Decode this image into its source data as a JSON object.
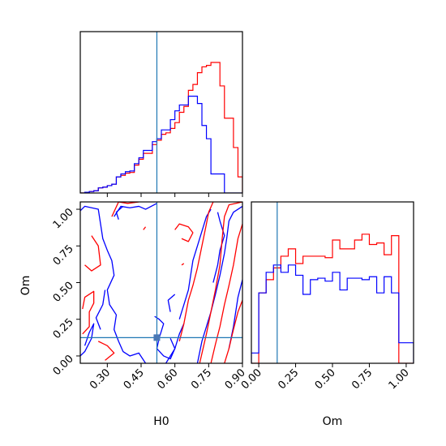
{
  "chart_data": {
    "type": "corner",
    "parameters": [
      "H0",
      "Om"
    ],
    "truth": {
      "H0": 0.52,
      "Om": 0.125
    },
    "colors": {
      "red": "#ff0000",
      "blue": "#0000ff",
      "truth": "#1f77b4",
      "marker": "#4a78b5"
    },
    "panels": [
      {
        "id": "hist-H0",
        "type": "histogram",
        "xlim": [
          0.18,
          0.9
        ],
        "ylim": [
          0,
          1.1
        ],
        "xticks": [
          "0.30",
          "0.45",
          "0.60",
          "0.75",
          "0.90"
        ],
        "xtick_values": [
          0.3,
          0.45,
          0.6,
          0.75,
          0.9
        ],
        "bin_edges": [
          0.18,
          0.2,
          0.22,
          0.24,
          0.26,
          0.28,
          0.3,
          0.32,
          0.34,
          0.36,
          0.38,
          0.4,
          0.42,
          0.44,
          0.46,
          0.48,
          0.5,
          0.52,
          0.54,
          0.56,
          0.58,
          0.6,
          0.62,
          0.64,
          0.66,
          0.68,
          0.7,
          0.72,
          0.74,
          0.76,
          0.78,
          0.8,
          0.82,
          0.84,
          0.86,
          0.88,
          0.9
        ],
        "series": [
          {
            "color": "red",
            "values": [
              0,
              0.005,
              0.01,
              0.015,
              0.035,
              0.04,
              0.05,
              0.06,
              0.11,
              0.12,
              0.135,
              0.14,
              0.19,
              0.23,
              0.27,
              0.27,
              0.33,
              0.36,
              0.4,
              0.41,
              0.44,
              0.48,
              0.55,
              0.59,
              0.7,
              0.74,
              0.82,
              0.86,
              0.87,
              0.89,
              0.89,
              0.73,
              0.51,
              0.51,
              0.31,
              0.11
            ]
          },
          {
            "color": "blue",
            "values": [
              0,
              0.005,
              0.01,
              0.015,
              0.035,
              0.04,
              0.05,
              0.06,
              0.11,
              0.13,
              0.145,
              0.15,
              0.2,
              0.24,
              0.29,
              0.29,
              0.35,
              0.37,
              0.43,
              0.43,
              0.5,
              0.56,
              0.6,
              0.6,
              0.66,
              0.66,
              0.61,
              0.46,
              0.37,
              0.13,
              0.13,
              0.13,
              0.0,
              0.0,
              0.0,
              0.0
            ]
          }
        ]
      },
      {
        "id": "contour-H0-Om",
        "type": "contour",
        "xlim": [
          0.18,
          0.9
        ],
        "ylim": [
          -0.05,
          1.05
        ],
        "xticks": [
          "0.30",
          "0.45",
          "0.60",
          "0.75",
          "0.90"
        ],
        "xtick_values": [
          0.3,
          0.45,
          0.6,
          0.75,
          0.9
        ],
        "yticks": [
          "0.00",
          "0.25",
          "0.50",
          "0.75",
          "1.00"
        ],
        "ytick_values": [
          0.0,
          0.25,
          0.5,
          0.75,
          1.0
        ],
        "xlabel": "H0",
        "ylabel": "Om",
        "contours": [
          {
            "color": "blue",
            "points": [
              [
                0.18,
                0.99
              ],
              [
                0.2,
                1.02
              ],
              [
                0.26,
                1.0
              ],
              [
                0.27,
                0.9
              ],
              [
                0.28,
                0.8
              ],
              [
                0.3,
                0.72
              ],
              [
                0.32,
                0.65
              ],
              [
                0.33,
                0.55
              ],
              [
                0.3,
                0.45
              ],
              [
                0.31,
                0.35
              ],
              [
                0.34,
                0.28
              ],
              [
                0.33,
                0.18
              ],
              [
                0.35,
                0.1
              ],
              [
                0.37,
                0.03
              ],
              [
                0.4,
                0.0
              ],
              [
                0.44,
                0.02
              ],
              [
                0.47,
                -0.05
              ]
            ]
          },
          {
            "color": "blue",
            "points": [
              [
                0.27,
                0.18
              ],
              [
                0.25,
                0.26
              ],
              [
                0.28,
                0.35
              ],
              [
                0.29,
                0.45
              ]
            ]
          },
          {
            "color": "blue",
            "points": [
              [
                0.2,
                0.07
              ],
              [
                0.22,
                0.16
              ],
              [
                0.24,
                0.22
              ],
              [
                0.23,
                0.12
              ],
              [
                0.2,
                0.03
              ],
              [
                0.18,
                0.0
              ]
            ]
          },
          {
            "color": "blue",
            "points": [
              [
                0.33,
                0.95
              ],
              [
                0.36,
                1.02
              ],
              [
                0.4,
                1.01
              ],
              [
                0.44,
                1.02
              ],
              [
                0.47,
                1.0
              ],
              [
                0.52,
                1.04
              ]
            ]
          },
          {
            "color": "blue",
            "points": [
              [
                0.37,
                1.02
              ],
              [
                0.34,
                0.98
              ],
              [
                0.35,
                0.93
              ]
            ]
          },
          {
            "color": "blue",
            "points": [
              [
                0.51,
                0.27
              ],
              [
                0.53,
                0.25
              ],
              [
                0.55,
                0.22
              ],
              [
                0.53,
                0.12
              ],
              [
                0.52,
                0.05
              ],
              [
                0.55,
                0.0
              ],
              [
                0.58,
                -0.02
              ],
              [
                0.6,
                0.05
              ],
              [
                0.58,
                0.12
              ]
            ]
          },
          {
            "color": "blue",
            "points": [
              [
                0.58,
                0.3
              ],
              [
                0.57,
                0.38
              ],
              [
                0.6,
                0.42
              ]
            ]
          },
          {
            "color": "blue",
            "points": [
              [
                0.62,
                0.25
              ],
              [
                0.64,
                0.35
              ],
              [
                0.66,
                0.45
              ],
              [
                0.67,
                0.55
              ],
              [
                0.68,
                0.65
              ],
              [
                0.7,
                0.75
              ],
              [
                0.72,
                0.85
              ],
              [
                0.74,
                0.95
              ],
              [
                0.76,
                1.0
              ]
            ]
          },
          {
            "color": "blue",
            "points": [
              [
                0.56,
                -0.05
              ],
              [
                0.6,
                0.05
              ],
              [
                0.62,
                0.15
              ],
              [
                0.64,
                0.22
              ]
            ]
          },
          {
            "color": "blue",
            "points": [
              [
                0.7,
                -0.05
              ],
              [
                0.72,
                0.1
              ],
              [
                0.74,
                0.2
              ],
              [
                0.76,
                0.3
              ],
              [
                0.78,
                0.42
              ],
              [
                0.8,
                0.55
              ],
              [
                0.82,
                0.7
              ],
              [
                0.83,
                0.8
              ],
              [
                0.84,
                0.92
              ],
              [
                0.86,
                0.98
              ],
              [
                0.9,
                1.02
              ]
            ]
          },
          {
            "color": "blue",
            "points": [
              [
                0.77,
                0.5
              ],
              [
                0.79,
                0.62
              ],
              [
                0.8,
                0.72
              ],
              [
                0.82,
                0.82
              ],
              [
                0.8,
                0.92
              ],
              [
                0.79,
                0.98
              ]
            ]
          },
          {
            "color": "blue",
            "points": [
              [
                0.84,
                0.05
              ],
              [
                0.86,
                0.2
              ],
              [
                0.88,
                0.4
              ],
              [
                0.9,
                0.52
              ]
            ]
          },
          {
            "color": "red",
            "points": [
              [
                0.19,
                0.32
              ],
              [
                0.2,
                0.4
              ],
              [
                0.24,
                0.44
              ],
              [
                0.24,
                0.36
              ],
              [
                0.22,
                0.3
              ],
              [
                0.22,
                0.2
              ],
              [
                0.19,
                0.15
              ]
            ]
          },
          {
            "color": "red",
            "points": [
              [
                0.2,
                0.62
              ],
              [
                0.23,
                0.58
              ],
              [
                0.27,
                0.62
              ],
              [
                0.26,
                0.75
              ],
              [
                0.23,
                0.82
              ]
            ]
          },
          {
            "color": "red",
            "points": [
              [
                0.32,
                0.95
              ],
              [
                0.35,
                1.05
              ],
              [
                0.39,
                1.04
              ],
              [
                0.44,
                1.05
              ]
            ]
          },
          {
            "color": "red",
            "points": [
              [
                0.26,
                0.1
              ],
              [
                0.3,
                0.07
              ],
              [
                0.33,
                0.02
              ],
              [
                0.29,
                -0.03
              ]
            ]
          },
          {
            "color": "red",
            "points": [
              [
                0.46,
                0.86
              ],
              [
                0.47,
                0.88
              ]
            ]
          },
          {
            "color": "red",
            "points": [
              [
                0.6,
                0.86
              ],
              [
                0.62,
                0.9
              ],
              [
                0.66,
                0.88
              ],
              [
                0.68,
                0.84
              ],
              [
                0.66,
                0.78
              ],
              [
                0.63,
                0.8
              ]
            ]
          },
          {
            "color": "red",
            "points": [
              [
                0.62,
                0.1
              ],
              [
                0.64,
                0.22
              ],
              [
                0.66,
                0.38
              ],
              [
                0.68,
                0.48
              ],
              [
                0.7,
                0.6
              ],
              [
                0.72,
                0.75
              ],
              [
                0.74,
                0.9
              ],
              [
                0.75,
                0.98
              ],
              [
                0.77,
                1.05
              ]
            ]
          },
          {
            "color": "red",
            "points": [
              [
                0.71,
                -0.05
              ],
              [
                0.74,
                0.15
              ],
              [
                0.76,
                0.3
              ],
              [
                0.78,
                0.45
              ],
              [
                0.8,
                0.62
              ],
              [
                0.81,
                0.8
              ],
              [
                0.82,
                0.95
              ],
              [
                0.84,
                1.03
              ],
              [
                0.9,
                1.05
              ]
            ]
          },
          {
            "color": "red",
            "points": [
              [
                0.63,
                0.62
              ],
              [
                0.64,
                0.63
              ]
            ]
          },
          {
            "color": "red",
            "points": [
              [
                0.76,
                -0.05
              ],
              [
                0.78,
                0.08
              ],
              [
                0.8,
                0.2
              ],
              [
                0.82,
                0.35
              ],
              [
                0.84,
                0.48
              ],
              [
                0.86,
                0.62
              ],
              [
                0.88,
                0.8
              ],
              [
                0.9,
                0.9
              ]
            ]
          },
          {
            "color": "red",
            "points": [
              [
                0.82,
                -0.05
              ],
              [
                0.84,
                0.05
              ],
              [
                0.86,
                0.18
              ],
              [
                0.88,
                0.3
              ],
              [
                0.9,
                0.38
              ]
            ]
          }
        ]
      },
      {
        "id": "hist-Om",
        "type": "histogram",
        "xlim": [
          -0.05,
          1.05
        ],
        "ylim": [
          0,
          1.1
        ],
        "xticks": [
          "0.00",
          "0.25",
          "0.50",
          "0.75",
          "1.00"
        ],
        "xtick_values": [
          0.0,
          0.25,
          0.5,
          0.75,
          1.0
        ],
        "xlabel": "Om",
        "bin_edges": [
          -0.05,
          0.0,
          0.05,
          0.1,
          0.15,
          0.2,
          0.25,
          0.3,
          0.35,
          0.4,
          0.45,
          0.5,
          0.55,
          0.6,
          0.65,
          0.7,
          0.75,
          0.8,
          0.85,
          0.9,
          0.95,
          1.0,
          1.05
        ],
        "series": [
          {
            "color": "red",
            "values": [
              0.0,
              0.48,
              0.57,
              0.65,
              0.73,
              0.78,
              0.68,
              0.73,
              0.73,
              0.73,
              0.72,
              0.84,
              0.78,
              0.78,
              0.84,
              0.88,
              0.81,
              0.82,
              0.74,
              0.87,
              0.0,
              0.0
            ]
          },
          {
            "color": "blue",
            "values": [
              0.07,
              0.48,
              0.62,
              0.67,
              0.62,
              0.67,
              0.6,
              0.47,
              0.57,
              0.58,
              0.56,
              0.62,
              0.5,
              0.58,
              0.58,
              0.57,
              0.59,
              0.48,
              0.59,
              0.48,
              0.14,
              0.14
            ]
          }
        ]
      }
    ]
  }
}
